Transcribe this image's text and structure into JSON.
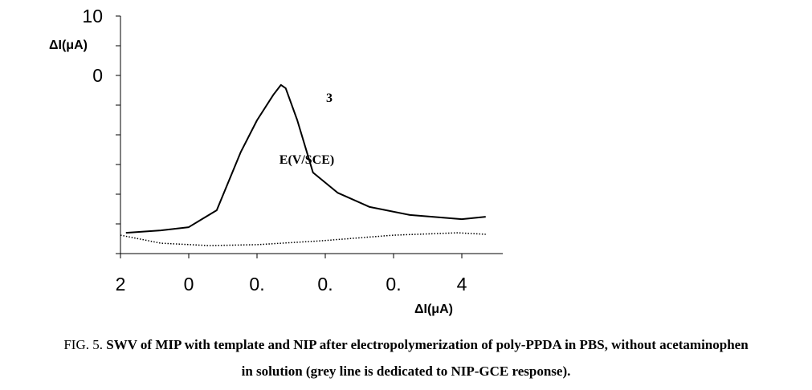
{
  "chart_data": {
    "type": "line",
    "y_label": "ΔI(μA)",
    "x_label": "ΔI(μA)",
    "annotations": [
      {
        "text": "3"
      },
      {
        "text": "E(V/SCE)"
      }
    ],
    "xlim": [
      0,
      5.6
    ],
    "ylim": [
      0,
      8
    ],
    "xticks": [
      {
        "value": 0,
        "label": "2"
      },
      {
        "value": 1,
        "label": "0"
      },
      {
        "value": 2,
        "label": "0."
      },
      {
        "value": 3,
        "label": "0."
      },
      {
        "value": 4,
        "label": "0."
      },
      {
        "value": 5,
        "label": "4"
      }
    ],
    "yticks": [
      0,
      1,
      2,
      3,
      4,
      5,
      6,
      7,
      8
    ],
    "ytick_labels": [
      {
        "value": 8,
        "label": "10"
      },
      {
        "value": 6,
        "label": "0"
      }
    ],
    "series": [
      {
        "color": "#000000",
        "style": "solid",
        "x": [
          0.08,
          0.59,
          1.0,
          1.41,
          1.76,
          2.0,
          2.24,
          2.35,
          2.42,
          2.59,
          2.82,
          3.18,
          3.65,
          4.24,
          5.0,
          5.35
        ],
        "values": [
          0.7,
          0.78,
          0.89,
          1.46,
          3.41,
          4.49,
          5.35,
          5.68,
          5.57,
          4.49,
          2.73,
          2.05,
          1.57,
          1.3,
          1.16,
          1.24
        ]
      },
      {
        "color": "#000000",
        "style": "dotted",
        "x": [
          0,
          0.59,
          1.29,
          2.0,
          2.94,
          4.0,
          4.94,
          5.35
        ],
        "values": [
          0.62,
          0.35,
          0.27,
          0.3,
          0.43,
          0.62,
          0.7,
          0.65
        ]
      }
    ]
  },
  "caption": {
    "label": "FIG. 5.",
    "lines": [
      "SWV of MIP with template and NIP after electropolymerization of poly-PPDA in PBS, without acetaminophen",
      "in solution (grey line is dedicated to NIP-GCE response)."
    ]
  }
}
